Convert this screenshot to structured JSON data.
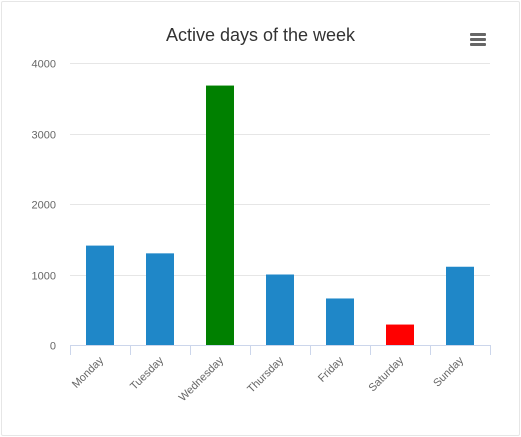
{
  "chart_data": {
    "type": "bar",
    "title": "Active days of the week",
    "xlabel": "",
    "ylabel": "",
    "categories": [
      "Monday",
      "Tuesday",
      "Wednesday",
      "Thursday",
      "Friday",
      "Saturday",
      "Sunday"
    ],
    "series": [
      {
        "values": [
          1410,
          1300,
          3680,
          1000,
          660,
          290,
          1110
        ],
        "colors": [
          "#1f87c8",
          "#1f87c8",
          "#008000",
          "#1f87c8",
          "#1f87c8",
          "#ff0000",
          "#1f87c8"
        ]
      }
    ],
    "ylim": [
      0,
      4000
    ],
    "yticks": [
      0,
      1000,
      2000,
      3000,
      4000
    ],
    "grid": true,
    "legend": "none"
  },
  "toolbar": {
    "menu_icon": "hamburger-menu-icon"
  },
  "colors": {
    "grid": "#e6e6e6",
    "axis": "#ccd6eb",
    "text": "#666666",
    "title": "#333333"
  }
}
